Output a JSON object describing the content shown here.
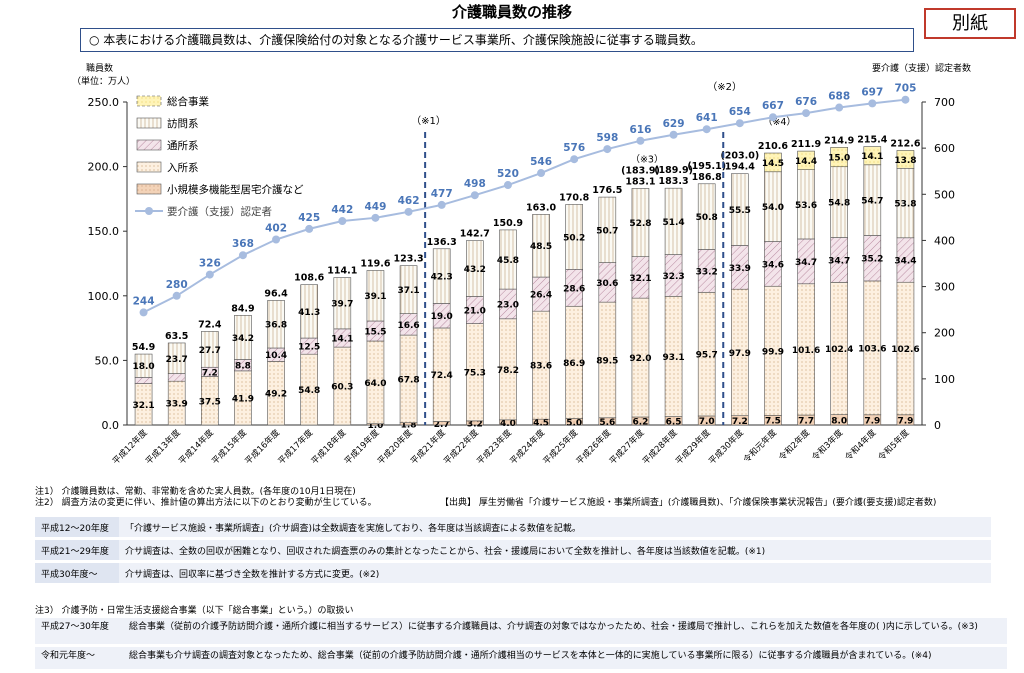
{
  "title": "介護職員数の推移",
  "stamp": "別紙",
  "summary_note": "○ 本表における介護職員数は、介護保険給付の対象となる介護サービス事業所、介護保険施設に従事する職員数。",
  "chart_data": {
    "type": "bar",
    "stacked": true,
    "left_axis_label": [
      "職員数",
      "（単位：万人）"
    ],
    "right_axis_label": "要介護（支援）認定者数",
    "ylim": [
      0,
      250
    ],
    "yticks": [
      "0.0",
      "50.0",
      "100.0",
      "150.0",
      "200.0",
      "250.0"
    ],
    "y2lim": [
      0,
      700
    ],
    "y2ticks": [
      "0",
      "100",
      "200",
      "300",
      "400",
      "500",
      "600",
      "700"
    ],
    "categories": [
      "平成12年度",
      "平成13年度",
      "平成14年度",
      "平成15年度",
      "平成16年度",
      "平成17年度",
      "平成18年度",
      "平成19年度",
      "平成20年度",
      "平成21年度",
      "平成22年度",
      "平成23年度",
      "平成24年度",
      "平成25年度",
      "平成26年度",
      "平成27年度",
      "平成28年度",
      "平成29年度",
      "平成30年度",
      "令和元年度",
      "令和2年度",
      "令和3年度",
      "令和4年度",
      "令和5年度"
    ],
    "series": [
      {
        "name": "小規模多機能型居宅介護など",
        "color": "#f3d3b8",
        "values": [
          null,
          null,
          null,
          null,
          null,
          null,
          null,
          1.0,
          1.8,
          2.7,
          3.2,
          4.0,
          4.5,
          5.0,
          5.6,
          6.2,
          6.5,
          7.0,
          7.2,
          7.5,
          7.7,
          8.0,
          7.9,
          7.9
        ]
      },
      {
        "name": "入所系",
        "color": "#fdf0e0",
        "values": [
          32.1,
          33.9,
          37.5,
          41.9,
          49.2,
          54.8,
          60.3,
          64.0,
          67.8,
          72.4,
          75.3,
          78.2,
          83.6,
          86.9,
          89.5,
          92.0,
          93.1,
          95.7,
          97.9,
          99.9,
          101.6,
          102.4,
          103.6,
          102.6
        ]
      },
      {
        "name": "通所系",
        "color": "#f3e4ea",
        "values": [
          4.8,
          5.9,
          7.2,
          8.8,
          10.4,
          12.5,
          14.1,
          15.5,
          16.6,
          19.0,
          21.0,
          23.0,
          26.4,
          28.6,
          30.6,
          32.1,
          32.3,
          33.2,
          33.9,
          34.6,
          34.7,
          34.7,
          35.2,
          34.4
        ]
      },
      {
        "name": "訪問系",
        "color": "#fbfaf4",
        "values": [
          18.0,
          23.7,
          27.7,
          34.2,
          36.8,
          41.3,
          39.7,
          39.1,
          37.1,
          42.3,
          43.2,
          45.8,
          48.5,
          50.2,
          50.7,
          52.8,
          51.4,
          50.8,
          55.5,
          54.0,
          53.6,
          54.8,
          54.7,
          53.8
        ]
      },
      {
        "name": "総合事業",
        "color": "#fff4b8",
        "values": [
          null,
          null,
          null,
          null,
          null,
          null,
          null,
          null,
          null,
          null,
          null,
          null,
          null,
          null,
          null,
          null,
          null,
          null,
          null,
          14.5,
          14.4,
          15.0,
          14.1,
          13.8
        ]
      }
    ],
    "totals": [
      "54.9",
      "63.5",
      "72.4",
      "84.9",
      "96.4",
      "108.6",
      "114.1",
      "119.6",
      "123.3",
      "136.3",
      "142.7",
      "150.9",
      "163.0",
      "170.8",
      "176.5",
      "183.1",
      "183.3",
      "186.8",
      "194.4",
      "210.6",
      "211.9",
      "214.9",
      "215.4",
      "212.6"
    ],
    "paren_totals": [
      null,
      null,
      null,
      null,
      null,
      null,
      null,
      null,
      null,
      null,
      null,
      null,
      null,
      null,
      null,
      "(183.9)",
      "(189.9)",
      "(195.1)",
      "(203.0)",
      null,
      null,
      null,
      null,
      null
    ],
    "line_series": {
      "name": "要介護（支援）認定者",
      "color": "#a7bcdf",
      "values": [
        244,
        280,
        326,
        368,
        402,
        425,
        442,
        449,
        462,
        477,
        498,
        520,
        546,
        576,
        598,
        616,
        629,
        641,
        654,
        667,
        676,
        688,
        697,
        705
      ]
    },
    "annotations": [
      "（※1）",
      "（※2）",
      "（※3）",
      "（※4）"
    ],
    "legend": [
      "総合事業",
      "訪問系",
      "通所系",
      "入所系",
      "小規模多機能型居宅介護など",
      "要介護（支援）認定者"
    ]
  },
  "footnotes": [
    "注1） 介護職員数は、常勤、非常勤を含めた実人員数。(各年度の10月1日現在)",
    "注2） 調査方法の変更に伴い、推計値の算出方法に以下のとおり変動が生じている。"
  ],
  "source": "【出典】 厚生労働省「介護サービス施設・事業所調査」(介護職員数)、「介護保険事業状況報告」(要介護(要支援)認定者数)",
  "method_rows": [
    {
      "period": "平成12～20年度",
      "text": "「介護サービス施設・事業所調査」(介サ調査)は全数調査を実施しており、各年度は当該調査による数値を記載。"
    },
    {
      "period": "平成21～29年度",
      "text": "介サ調査は、全数の回収が困難となり、回収された調査票のみの集計となったことから、社会・援護局において全数を推計し、各年度は当該数値を記載。(※1)"
    },
    {
      "period": "平成30年度～",
      "text": "介サ調査は、回収率に基づき全数を推計する方式に変更。(※2)"
    }
  ],
  "note3_title": "注3） 介護予防・日常生活支援総合事業（以下「総合事業」という。）の取扱い",
  "note3_rows": [
    {
      "period": "平成27～30年度",
      "text": "総合事業（従前の介護予防訪問介護・通所介護に相当するサービス）に従事する介護職員は、介サ調査の対象ではなかったため、社会・援護局で推計し、これらを加えた数値を各年度の( )内に示している。(※3)"
    },
    {
      "period": "令和元年度～",
      "text": "総合事業も介サ調査の調査対象となったため、総合事業（従前の介護予防訪問介護・通所介護相当のサービスを本体と一体的に実施している事業所に限る）に従事する介護職員が含まれている。(※4)"
    }
  ]
}
